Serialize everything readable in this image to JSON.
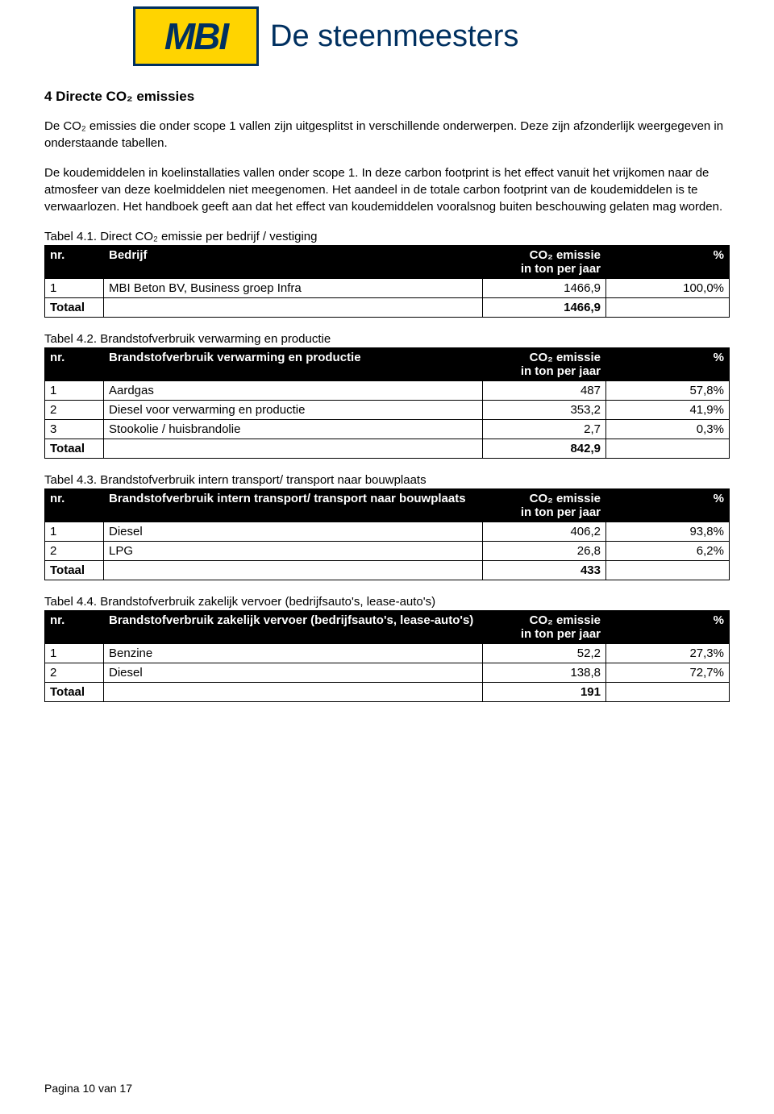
{
  "logo": {
    "mark": "MBI",
    "text": "De steenmeesters"
  },
  "heading": "4  Directe CO₂ emissies",
  "para1": "De CO₂ emissies die onder scope 1 vallen zijn uitgesplitst in verschillende onderwerpen. Deze zijn afzonderlijk weergegeven in onderstaande tabellen.",
  "para2": "De koudemiddelen in koelinstallaties vallen onder scope 1. In deze carbon footprint is het effect vanuit het vrijkomen naar de atmosfeer van deze koelmiddelen niet meegenomen. Het aandeel in de totale carbon footprint van de koudemiddelen is te verwaarlozen. Het handboek geeft aan dat het effect van koudemiddelen vooralsnog buiten beschouwing gelaten mag worden.",
  "tables": {
    "t1": {
      "caption": "Tabel 4.1. Direct CO₂ emissie per bedrijf / vestiging",
      "header_label": "Bedrijf",
      "rows": [
        {
          "nr": "1",
          "label": "MBI Beton BV, Business groep Infra",
          "val": "1466,9",
          "pct": "100,0%"
        }
      ],
      "total_val": "1466,9"
    },
    "t2": {
      "caption": "Tabel 4.2. Brandstofverbruik verwarming en productie",
      "header_label": "Brandstofverbruik verwarming en productie",
      "rows": [
        {
          "nr": "1",
          "label": "Aardgas",
          "val": "487",
          "pct": "57,8%"
        },
        {
          "nr": "2",
          "label": "Diesel voor verwarming en productie",
          "val": "353,2",
          "pct": "41,9%"
        },
        {
          "nr": "3",
          "label": "Stookolie / huisbrandolie",
          "val": "2,7",
          "pct": "0,3%"
        }
      ],
      "total_val": "842,9"
    },
    "t3": {
      "caption": "Tabel 4.3. Brandstofverbruik intern transport/ transport naar bouwplaats",
      "header_label": "Brandstofverbruik intern transport/ transport naar bouwplaats",
      "rows": [
        {
          "nr": "1",
          "label": "Diesel",
          "val": "406,2",
          "pct": "93,8%"
        },
        {
          "nr": "2",
          "label": "LPG",
          "val": "26,8",
          "pct": "6,2%"
        }
      ],
      "total_val": "433"
    },
    "t4": {
      "caption": "Tabel 4.4. Brandstofverbruik zakelijk vervoer (bedrijfsauto's, lease-auto's)",
      "header_label": "Brandstofverbruik zakelijk vervoer (bedrijfsauto's, lease-auto's)",
      "rows": [
        {
          "nr": "1",
          "label": "Benzine",
          "val": "52,2",
          "pct": "27,3%"
        },
        {
          "nr": "2",
          "label": "Diesel",
          "val": "138,8",
          "pct": "72,7%"
        }
      ],
      "total_val": "191"
    }
  },
  "common": {
    "nr_header": "nr.",
    "co2_header_line1": "CO₂ emissie",
    "co2_header_line2": "in ton per jaar",
    "pct_header": "%",
    "total_label": "Totaal"
  },
  "footer": "Pagina 10 van 17",
  "colors": {
    "logo_bg": "#ffd400",
    "logo_border": "#003060",
    "brand_text": "#003060",
    "table_header_bg": "#000000",
    "table_header_fg": "#ffffff",
    "page_bg": "#ffffff",
    "text": "#000000"
  },
  "typography": {
    "body_family": "Verdana",
    "body_size_pt": 11,
    "heading_size_pt": 13,
    "logo_text_size_pt": 28
  }
}
